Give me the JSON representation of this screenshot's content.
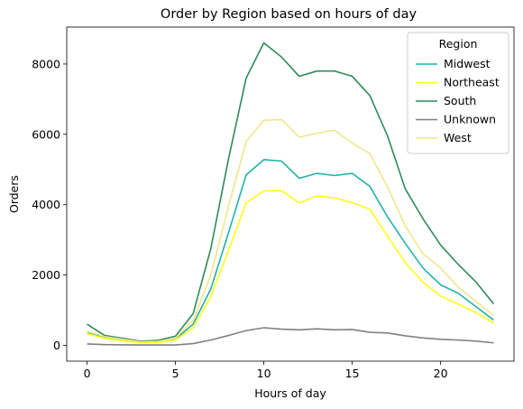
{
  "chart_data": {
    "type": "line",
    "title": "Order by Region based on hours of day",
    "xlabel": "Hours of day",
    "ylabel": "Orders",
    "xlim": [
      -1.15,
      24.15
    ],
    "ylim": [
      -450,
      9050
    ],
    "xticks": [
      0,
      5,
      10,
      15,
      20
    ],
    "yticks": [
      0,
      2000,
      4000,
      6000,
      8000
    ],
    "grid": false,
    "legend": {
      "title": "Region",
      "placement": "top-right"
    },
    "x": [
      0,
      1,
      2,
      3,
      4,
      5,
      6,
      7,
      8,
      9,
      10,
      11,
      12,
      13,
      14,
      15,
      16,
      17,
      18,
      19,
      20,
      21,
      22,
      23
    ],
    "series": [
      {
        "name": "Midwest",
        "color": "#20b2aa",
        "values": [
          350,
          220,
          150,
          80,
          90,
          180,
          600,
          1600,
          3200,
          4850,
          5280,
          5240,
          4750,
          4890,
          4830,
          4890,
          4520,
          3650,
          2900,
          2200,
          1720,
          1480,
          1100,
          720
        ]
      },
      {
        "name": "Northeast",
        "color": "#ffff14",
        "values": [
          330,
          200,
          130,
          70,
          80,
          150,
          500,
          1380,
          2700,
          4050,
          4390,
          4400,
          4050,
          4250,
          4190,
          4060,
          3870,
          3100,
          2350,
          1800,
          1400,
          1170,
          930,
          630
        ]
      },
      {
        "name": "South",
        "color": "#2e8b57",
        "values": [
          600,
          280,
          200,
          120,
          140,
          260,
          900,
          2750,
          5300,
          7600,
          8600,
          8200,
          7650,
          7800,
          7800,
          7650,
          7100,
          5950,
          4450,
          3600,
          2850,
          2300,
          1800,
          1180
        ]
      },
      {
        "name": "Unknown",
        "color": "#808080",
        "values": [
          40,
          20,
          15,
          10,
          10,
          10,
          50,
          150,
          280,
          420,
          500,
          460,
          440,
          470,
          440,
          450,
          370,
          350,
          270,
          210,
          170,
          150,
          120,
          70
        ]
      },
      {
        "name": "West",
        "color": "#f0e68c",
        "values": [
          400,
          250,
          170,
          100,
          110,
          200,
          700,
          2000,
          3950,
          5800,
          6400,
          6420,
          5920,
          6030,
          6120,
          5750,
          5450,
          4500,
          3400,
          2600,
          2200,
          1650,
          1250,
          850
        ]
      }
    ]
  }
}
